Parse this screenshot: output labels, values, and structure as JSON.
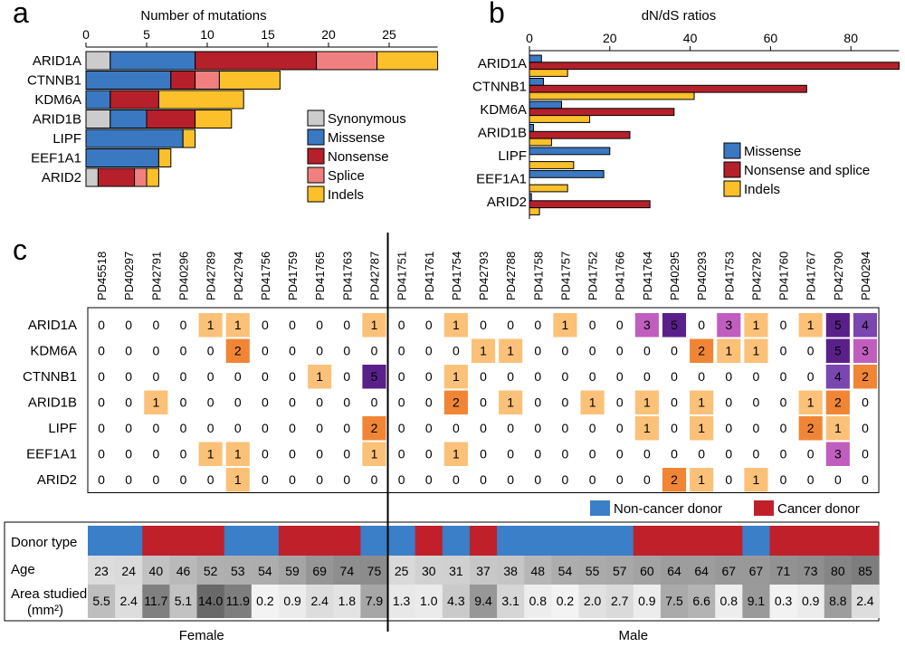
{
  "panel_labels": {
    "a": "a",
    "b": "b",
    "c": "c"
  },
  "colors": {
    "synonymous": "#cccccc",
    "missense": "#3b78c2",
    "nonsense": "#b5202a",
    "splice": "#f08080",
    "indels": "#fcc02b",
    "noncancer": "#3a7fc7",
    "cancer": "#c0202a",
    "heat_1": "#fbc178",
    "heat_2": "#f08635",
    "heat_3": "#c05ec0",
    "heat_4": "#7a46b0",
    "heat_5": "#5a208a"
  },
  "chart_data": [
    {
      "id": "a",
      "type": "bar",
      "orientation": "horizontal",
      "stacked": true,
      "title": "Number of mutations",
      "xlim": [
        0,
        29
      ],
      "xticks": [
        0,
        5,
        10,
        15,
        20,
        25
      ],
      "categories": [
        "ARID1A",
        "CTNNB1",
        "KDM6A",
        "ARID1B",
        "LIPF",
        "EEF1A1",
        "ARID2"
      ],
      "series": [
        {
          "name": "Synonymous",
          "key": "synonymous",
          "values": [
            2,
            0,
            0,
            2,
            0,
            0,
            1
          ]
        },
        {
          "name": "Missense",
          "key": "missense",
          "values": [
            7,
            7,
            2,
            3,
            8,
            6,
            0
          ]
        },
        {
          "name": "Nonsense",
          "key": "nonsense",
          "values": [
            10,
            2,
            4,
            4,
            0,
            0,
            3
          ]
        },
        {
          "name": "Splice",
          "key": "splice",
          "values": [
            5,
            2,
            0,
            0,
            0,
            0,
            1
          ]
        },
        {
          "name": "Indels",
          "key": "indels",
          "values": [
            5,
            5,
            7,
            3,
            1,
            1,
            1
          ]
        }
      ],
      "legend": [
        "Synonymous",
        "Missense",
        "Nonsense",
        "Splice",
        "Indels"
      ],
      "legend_position": "right"
    },
    {
      "id": "b",
      "type": "bar",
      "orientation": "horizontal",
      "grouped": true,
      "title": "dN/dS ratios",
      "xlim": [
        0,
        92
      ],
      "xticks": [
        0,
        20,
        40,
        60,
        80
      ],
      "categories": [
        "ARID1A",
        "CTNNB1",
        "KDM6A",
        "ARID1B",
        "LIPF",
        "EEF1A1",
        "ARID2"
      ],
      "series": [
        {
          "name": "Missense",
          "key": "missense",
          "values": [
            3,
            3.5,
            8,
            1,
            20,
            18.5,
            0.5
          ]
        },
        {
          "name": "Nonsense and splice",
          "key": "nonsense",
          "values": [
            92,
            69,
            36,
            25,
            0,
            0,
            30
          ]
        },
        {
          "name": "Indels",
          "key": "indels",
          "values": [
            9.5,
            41,
            15,
            5.5,
            11,
            9.5,
            2.5
          ]
        }
      ],
      "legend": [
        "Missense",
        "Nonsense and splice",
        "Indels"
      ],
      "legend_position": "bottom-right"
    },
    {
      "id": "c",
      "type": "heatmap",
      "samples": [
        "PD45518",
        "PD40297",
        "PD42791",
        "PD40296",
        "PD42789",
        "PD42794",
        "PD41756",
        "PD41759",
        "PD41765",
        "PD41763",
        "PD42787",
        "PD41751",
        "PD41761",
        "PD41754",
        "PD42793",
        "PD42788",
        "PD41758",
        "PD41757",
        "PD41752",
        "PD41766",
        "PD41764",
        "PD40295",
        "PD40293",
        "PD41753",
        "PD42792",
        "PD41760",
        "PD41767",
        "PD42790",
        "PD40294"
      ],
      "genes": [
        "ARID1A",
        "KDM6A",
        "CTNNB1",
        "ARID1B",
        "LIPF",
        "EEF1A1",
        "ARID2"
      ],
      "matrix": [
        [
          0,
          0,
          0,
          0,
          1,
          1,
          0,
          0,
          0,
          0,
          1,
          0,
          0,
          1,
          0,
          0,
          0,
          1,
          0,
          0,
          3,
          5,
          0,
          3,
          1,
          0,
          1,
          5,
          4
        ],
        [
          0,
          0,
          0,
          0,
          0,
          2,
          0,
          0,
          0,
          0,
          0,
          0,
          0,
          0,
          1,
          1,
          0,
          0,
          0,
          0,
          0,
          0,
          2,
          1,
          1,
          0,
          0,
          5,
          3
        ],
        [
          0,
          0,
          0,
          0,
          0,
          0,
          0,
          0,
          1,
          0,
          5,
          0,
          0,
          1,
          0,
          0,
          0,
          0,
          0,
          0,
          0,
          0,
          0,
          0,
          0,
          0,
          0,
          4,
          2
        ],
        [
          0,
          0,
          1,
          0,
          0,
          0,
          0,
          0,
          0,
          0,
          0,
          0,
          0,
          2,
          0,
          1,
          0,
          0,
          1,
          0,
          1,
          0,
          1,
          0,
          0,
          0,
          1,
          2,
          0
        ],
        [
          0,
          0,
          0,
          0,
          0,
          0,
          0,
          0,
          0,
          0,
          2,
          0,
          0,
          0,
          0,
          0,
          0,
          0,
          0,
          0,
          1,
          0,
          1,
          0,
          0,
          0,
          2,
          1,
          0
        ],
        [
          0,
          0,
          0,
          0,
          1,
          1,
          0,
          0,
          0,
          0,
          1,
          0,
          0,
          1,
          0,
          0,
          0,
          0,
          0,
          0,
          0,
          0,
          0,
          0,
          0,
          0,
          0,
          3,
          0
        ],
        [
          0,
          0,
          0,
          0,
          0,
          1,
          0,
          0,
          0,
          0,
          0,
          0,
          0,
          0,
          0,
          0,
          0,
          0,
          0,
          0,
          0,
          2,
          1,
          0,
          1,
          0,
          0,
          0,
          0
        ]
      ],
      "donor_type_label": "Donor type",
      "age_label": "Age",
      "area_label": "Area studied",
      "area_unit": "(mm²)",
      "donor_types": [
        "N",
        "N",
        "C",
        "C",
        "C",
        "N",
        "N",
        "C",
        "C",
        "C",
        "N",
        "N",
        "C",
        "N",
        "C",
        "N",
        "N",
        "N",
        "N",
        "N",
        "C",
        "C",
        "C",
        "C",
        "N",
        "C",
        "C",
        "C",
        "C"
      ],
      "ages": [
        23,
        24,
        40,
        46,
        52,
        53,
        54,
        59,
        69,
        74,
        75,
        25,
        30,
        31,
        37,
        38,
        48,
        54,
        55,
        57,
        60,
        64,
        64,
        67,
        67,
        71,
        73,
        80,
        85
      ],
      "areas": [
        "5.5",
        "2.4",
        "11.7",
        "5.1",
        "14.0",
        "11.9",
        "0.2",
        "0.9",
        "2.4",
        "1.8",
        "7.9",
        "1.3",
        "1.0",
        "4.3",
        "9.4",
        "3.1",
        "0.8",
        "0.2",
        "2.0",
        "2.7",
        "0.9",
        "7.5",
        "6.6",
        "0.8",
        "9.1",
        "0.3",
        "0.9",
        "8.8",
        "2.4"
      ],
      "legend": {
        "noncancer": "Non-cancer donor",
        "cancer": "Cancer donor"
      },
      "groups": {
        "female": "Female",
        "male": "Male"
      },
      "female_count": 11
    }
  ]
}
